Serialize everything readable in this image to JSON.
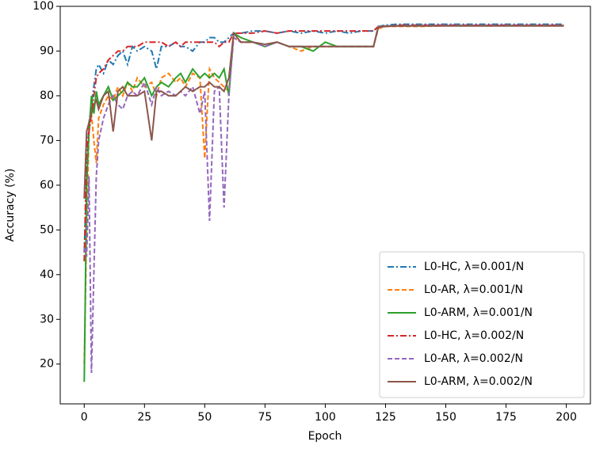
{
  "chart_data": {
    "type": "line",
    "x_label": "Epoch",
    "y_label": "Accuracy (%)",
    "x": [
      0,
      1,
      2,
      3,
      4,
      5,
      6,
      8,
      10,
      12,
      14,
      16,
      18,
      20,
      22,
      25,
      28,
      30,
      32,
      35,
      38,
      40,
      42,
      45,
      48,
      50,
      52,
      54,
      56,
      58,
      60,
      62,
      65,
      70,
      75,
      80,
      85,
      90,
      95,
      100,
      105,
      110,
      115,
      120,
      122,
      125,
      130,
      140,
      150,
      160,
      170,
      180,
      190,
      199
    ],
    "series": [
      {
        "name": "L0-HC, λ=0.001/N",
        "color": "#1f77b4",
        "dash": "dashdot",
        "values": [
          45,
          62,
          74,
          78,
          82,
          86,
          87,
          85,
          88,
          87,
          89,
          90,
          87,
          91,
          90,
          91,
          90,
          86,
          91,
          91,
          92,
          91,
          91,
          90,
          92,
          92,
          93,
          93,
          92,
          92,
          93,
          94,
          94,
          94.5,
          94.5,
          94,
          94.5,
          94,
          94.5,
          94,
          94.5,
          94,
          94.5,
          94.5,
          95.5,
          95.8,
          96,
          96,
          96,
          96,
          96,
          96,
          96,
          96
        ]
      },
      {
        "name": "L0-AR, λ=0.001/N",
        "color": "#ff7f0e",
        "dash": "dashed",
        "values": [
          20,
          50,
          72,
          76,
          70,
          65,
          75,
          78,
          80,
          79,
          82,
          80,
          83,
          81,
          84,
          82,
          83,
          80,
          84,
          85,
          83,
          84,
          82,
          85,
          84,
          66,
          86,
          84,
          83,
          82,
          81,
          93,
          92,
          92,
          91,
          92,
          91,
          90,
          91,
          91,
          91,
          91,
          91,
          91,
          95,
          95.5,
          95.5,
          95.5,
          95.7,
          95.7,
          95.7,
          95.7,
          95.7,
          95.7
        ]
      },
      {
        "name": "L0-ARM, λ=0.001/N",
        "color": "#2ca02c",
        "dash": "solid",
        "values": [
          16,
          60,
          72,
          80,
          76,
          81,
          78,
          80,
          82,
          79,
          80,
          81,
          83,
          82,
          82,
          84,
          80,
          82,
          83,
          82,
          84,
          85,
          83,
          86,
          84,
          85,
          84,
          85,
          84,
          86,
          80,
          94,
          93,
          92,
          91,
          92,
          91,
          91,
          90,
          92,
          91,
          91,
          91,
          91,
          95.5,
          95.6,
          95.6,
          95.7,
          95.7,
          95.7,
          95.7,
          95.7,
          95.7,
          95.7
        ]
      },
      {
        "name": "L0-HC, λ=0.002/N",
        "color": "#d62728",
        "dash": "dashdot",
        "values": [
          43,
          68,
          72,
          76,
          80,
          84,
          85,
          86,
          88,
          89,
          90,
          90,
          91,
          91,
          91,
          92,
          92,
          92,
          92,
          91,
          92,
          91,
          92,
          92,
          92,
          92,
          92,
          92,
          91,
          92,
          92,
          94,
          94,
          94,
          94.5,
          94,
          94.5,
          94.5,
          94.5,
          94.5,
          94.5,
          94.5,
          94.5,
          94.5,
          95.5,
          95.5,
          95.8,
          95.8,
          95.8,
          95.8,
          95.8,
          95.8,
          95.8,
          95.8
        ]
      },
      {
        "name": "L0-AR, λ=0.002/N",
        "color": "#9467bd",
        "dash": "dashed",
        "values": [
          46,
          44,
          62,
          18,
          40,
          62,
          70,
          75,
          78,
          80,
          78,
          77,
          80,
          81,
          80,
          83,
          78,
          82,
          80,
          81,
          80,
          81,
          80,
          82,
          76,
          81,
          52,
          81,
          82,
          55,
          80,
          93,
          92,
          92,
          91,
          92,
          91,
          91,
          91,
          91,
          91,
          91,
          91,
          91,
          95.5,
          95.6,
          95.6,
          95.7,
          95.7,
          95.7,
          95.7,
          95.7,
          95.7,
          95.7
        ]
      },
      {
        "name": "L0-ARM, λ=0.002/N",
        "color": "#8c564b",
        "dash": "solid",
        "values": [
          57,
          72,
          74,
          76,
          78,
          79,
          77,
          80,
          81,
          72,
          81,
          82,
          80,
          80,
          80,
          81,
          70,
          81,
          81,
          80,
          80,
          81,
          82,
          81,
          82,
          82,
          83,
          82,
          82,
          81,
          84,
          94,
          92,
          92,
          91.5,
          92,
          91,
          91,
          91,
          91,
          91,
          91,
          91,
          91,
          95.3,
          95.5,
          95.6,
          95.6,
          95.6,
          95.6,
          95.6,
          95.6,
          95.6,
          95.6
        ]
      }
    ],
    "xlim": [
      -9.95,
      210
    ],
    "xticks": [
      0,
      25,
      50,
      75,
      100,
      125,
      150,
      175,
      200
    ],
    "ylim": [
      11.1,
      100
    ],
    "yticks": [
      20,
      30,
      40,
      50,
      60,
      70,
      80,
      90,
      100
    ],
    "legend": "lower right"
  }
}
